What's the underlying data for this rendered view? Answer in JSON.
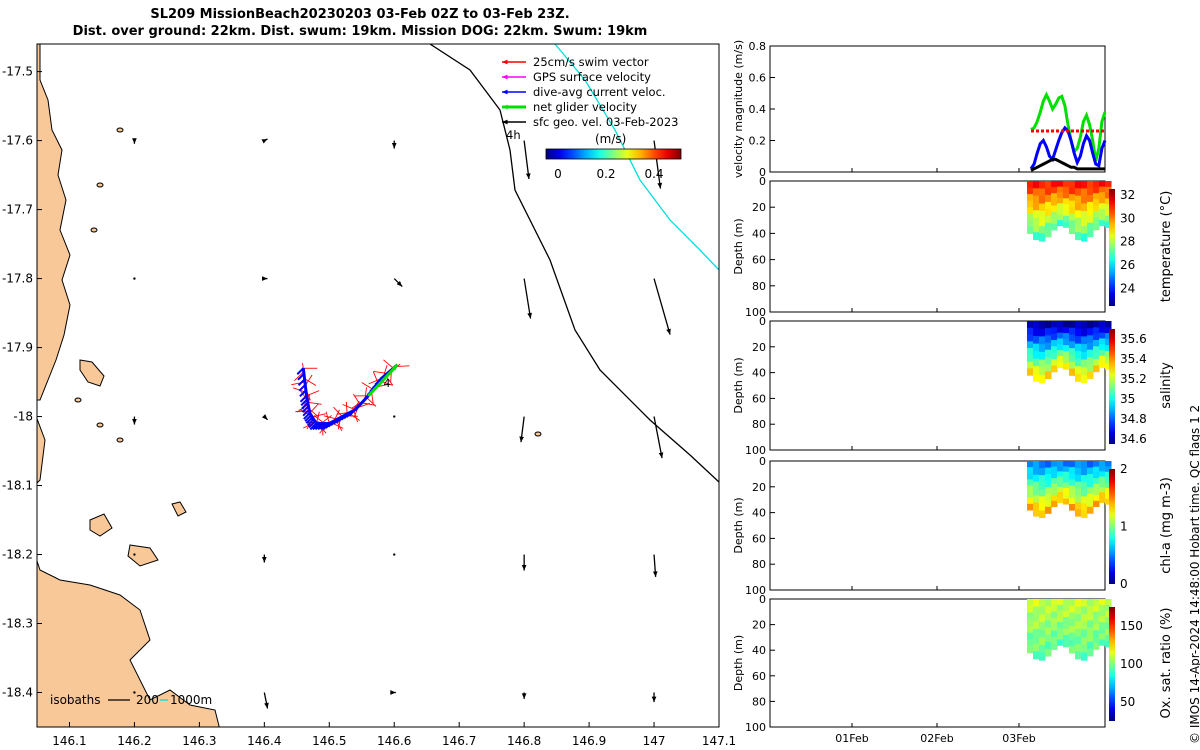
{
  "title": {
    "line1": "SL209 MissionBeach20230203 03-Feb 02Z to 03-Feb 23Z.",
    "line2": "Dist. over ground: 22km. Dist. swum: 19km. Mission DOG: 22km. Swum: 19km"
  },
  "credit": "© IMOS 14-Apr-2024 14:48:00 Hobart time. QC flags 1  2",
  "colors": {
    "land": "#f8c898",
    "swim": "#ff0000",
    "gps": "#ff00ff",
    "dac": "#0000ff",
    "net": "#00e000",
    "sfc": "#000000",
    "cyan_track": "#00e0e0"
  },
  "chart_data": [
    {
      "type": "map",
      "x_ticks": [
        "146.1",
        "146.2",
        "146.3",
        "146.4",
        "146.5",
        "146.6",
        "146.7",
        "146.8",
        "146.9",
        "147",
        "147.1"
      ],
      "y_ticks": [
        "-17.5",
        "-17.6",
        "-17.7",
        "-17.8",
        "-17.9",
        "-18",
        "-18.1",
        "-18.2",
        "-18.3",
        "-18.4"
      ],
      "xlim": [
        146.05,
        147.1
      ],
      "ylim": [
        -18.45,
        -17.46
      ],
      "legend": {
        "position": "top-right",
        "entries": [
          "25cm/s swim vector",
          "GPS surface velocity",
          "dive-avg current veloc.",
          "net glider velocity",
          "sfc geo. vel. 03-Feb-2023"
        ],
        "duration_label": "4h"
      },
      "colorbar": {
        "unit": "(m/s)",
        "ticks": [
          "0",
          "0.2",
          "0.4"
        ]
      },
      "isobath_label": "isobaths",
      "isobath_values": [
        "200",
        "1000m"
      ],
      "track_label": "4",
      "glider_track": [
        [
          146.46,
          -17.93
        ],
        [
          146.465,
          -17.97
        ],
        [
          146.47,
          -17.995
        ],
        [
          146.48,
          -18.01
        ],
        [
          146.5,
          -18.01
        ],
        [
          146.52,
          -18.0
        ],
        [
          146.54,
          -17.99
        ],
        [
          146.56,
          -17.97
        ],
        [
          146.58,
          -17.945
        ],
        [
          146.605,
          -17.925
        ]
      ],
      "geo_vectors": [
        {
          "lon": 146.2,
          "lat": -17.6,
          "u": 0.0,
          "v": -0.02
        },
        {
          "lon": 146.4,
          "lat": -17.6,
          "u": 0.02,
          "v": 0.01
        },
        {
          "lon": 146.6,
          "lat": -17.6,
          "u": 0.0,
          "v": -0.05
        },
        {
          "lon": 146.8,
          "lat": -17.6,
          "u": 0.03,
          "v": -0.24
        },
        {
          "lon": 147.0,
          "lat": -17.6,
          "u": 0.04,
          "v": -0.3
        },
        {
          "lon": 146.2,
          "lat": -17.8,
          "u": 0.0,
          "v": 0.0
        },
        {
          "lon": 146.4,
          "lat": -17.8,
          "u": 0.02,
          "v": 0.0
        },
        {
          "lon": 146.6,
          "lat": -17.8,
          "u": 0.05,
          "v": -0.05
        },
        {
          "lon": 146.8,
          "lat": -17.8,
          "u": 0.04,
          "v": -0.25
        },
        {
          "lon": 147.0,
          "lat": -17.8,
          "u": 0.1,
          "v": -0.35
        },
        {
          "lon": 146.2,
          "lat": -18.0,
          "u": 0.0,
          "v": -0.05
        },
        {
          "lon": 146.4,
          "lat": -18.0,
          "u": 0.02,
          "v": -0.02
        },
        {
          "lon": 146.6,
          "lat": -18.0,
          "u": 0.0,
          "v": 0.0
        },
        {
          "lon": 146.8,
          "lat": -18.0,
          "u": -0.02,
          "v": -0.16
        },
        {
          "lon": 147.0,
          "lat": -18.0,
          "u": 0.05,
          "v": -0.26
        },
        {
          "lon": 146.2,
          "lat": -18.2,
          "u": 0.0,
          "v": 0.0
        },
        {
          "lon": 146.4,
          "lat": -18.2,
          "u": 0.0,
          "v": -0.05
        },
        {
          "lon": 146.6,
          "lat": -18.2,
          "u": 0.0,
          "v": 0.0
        },
        {
          "lon": 146.8,
          "lat": -18.2,
          "u": 0.0,
          "v": -0.1
        },
        {
          "lon": 147.0,
          "lat": -18.2,
          "u": 0.01,
          "v": -0.14
        },
        {
          "lon": 146.2,
          "lat": -18.4,
          "u": 0.0,
          "v": 0.0
        },
        {
          "lon": 146.4,
          "lat": -18.4,
          "u": 0.02,
          "v": -0.1
        },
        {
          "lon": 146.6,
          "lat": -18.4,
          "u": 0.01,
          "v": 0.0
        },
        {
          "lon": 146.8,
          "lat": -18.4,
          "u": 0.0,
          "v": -0.04
        },
        {
          "lon": 147.0,
          "lat": -18.4,
          "u": 0.0,
          "v": -0.06
        }
      ]
    },
    {
      "type": "line",
      "ylabel": "velocity magnitude (m/s)",
      "ylim": [
        0,
        0.8
      ],
      "y_ticks": [
        "0",
        "0.2",
        "0.4",
        "0.6",
        "0.8"
      ],
      "x_ticks": [
        "01Feb",
        "02Feb",
        "03Feb"
      ],
      "series": [
        {
          "color": "#00e000",
          "values": [
            0.27,
            0.28,
            0.32,
            0.38,
            0.45,
            0.49,
            0.45,
            0.4,
            0.43,
            0.47,
            0.48,
            0.42,
            0.3,
            0.2,
            0.13,
            0.15,
            0.22,
            0.32,
            0.36,
            0.3,
            0.2,
            0.07,
            0.15,
            0.32,
            0.38
          ]
        },
        {
          "color": "#0000ff",
          "values": [
            0.02,
            0.05,
            0.12,
            0.18,
            0.2,
            0.16,
            0.1,
            0.08,
            0.14,
            0.2,
            0.25,
            0.28,
            0.26,
            0.2,
            0.12,
            0.06,
            0.1,
            0.18,
            0.23,
            0.2,
            0.12,
            0.05,
            0.04,
            0.15,
            0.2
          ]
        },
        {
          "color": "#000000",
          "values": [
            0.01,
            0.02,
            0.03,
            0.04,
            0.05,
            0.06,
            0.07,
            0.08,
            0.08,
            0.07,
            0.06,
            0.05,
            0.04,
            0.03,
            0.03,
            0.02,
            0.02,
            0.02,
            0.02,
            0.02,
            0.02,
            0.02,
            0.02,
            0.02,
            0.02
          ]
        },
        {
          "color": "#ff0000",
          "values": [
            0.26,
            0.26,
            0.26,
            0.26,
            0.26,
            0.26,
            0.26,
            0.26,
            0.26,
            0.26,
            0.26,
            0.26,
            0.26,
            0.26,
            0.26,
            0.26,
            0.26,
            0.26,
            0.26,
            0.26,
            0.26,
            0.26,
            0.26,
            0.26,
            0.26
          ]
        }
      ]
    },
    {
      "type": "heatmap",
      "ylabel": "Depth (m)",
      "ylim": [
        0,
        100
      ],
      "y_ticks": [
        "0",
        "20",
        "40",
        "60",
        "80",
        "100"
      ],
      "colorbar_label": "temperature (°C)",
      "colorbar_ticks": [
        "24",
        "26",
        "28",
        "30",
        "32"
      ],
      "clim": [
        22.5,
        32.5
      ],
      "surface_value": 31,
      "bottom_value": 27,
      "bottom_depth": 40
    },
    {
      "type": "heatmap",
      "ylabel": "Depth (m)",
      "ylim": [
        0,
        100
      ],
      "y_ticks": [
        "0",
        "20",
        "40",
        "60",
        "80",
        "100"
      ],
      "colorbar_label": "salinity",
      "colorbar_ticks": [
        "34.6",
        "34.8",
        "35",
        "35.2",
        "35.4",
        "35.6"
      ],
      "clim": [
        34.55,
        35.7
      ],
      "surface_value": 34.6,
      "bottom_value": 35.3,
      "bottom_depth": 42
    },
    {
      "type": "heatmap",
      "ylabel": "Depth (m)",
      "ylim": [
        0,
        100
      ],
      "y_ticks": [
        "0",
        "20",
        "40",
        "60",
        "80",
        "100"
      ],
      "colorbar_label": "chl-a (mg m-3)",
      "colorbar_ticks": [
        "0",
        "1",
        "2"
      ],
      "clim": [
        0,
        2
      ],
      "surface_value": 0.5,
      "bottom_value": 1.4,
      "bottom_depth": 38
    },
    {
      "type": "heatmap",
      "ylabel": "Depth (m)",
      "ylim": [
        0,
        100
      ],
      "y_ticks": [
        "0",
        "20",
        "40",
        "60",
        "80",
        "100"
      ],
      "x_ticks": [
        "01Feb",
        "02Feb",
        "03Feb"
      ],
      "colorbar_label": "Ox. sat. ratio (%)",
      "colorbar_ticks": [
        "50",
        "100",
        "150"
      ],
      "clim": [
        25,
        175
      ],
      "surface_value": 110,
      "bottom_value": 95,
      "bottom_depth": 42
    }
  ]
}
